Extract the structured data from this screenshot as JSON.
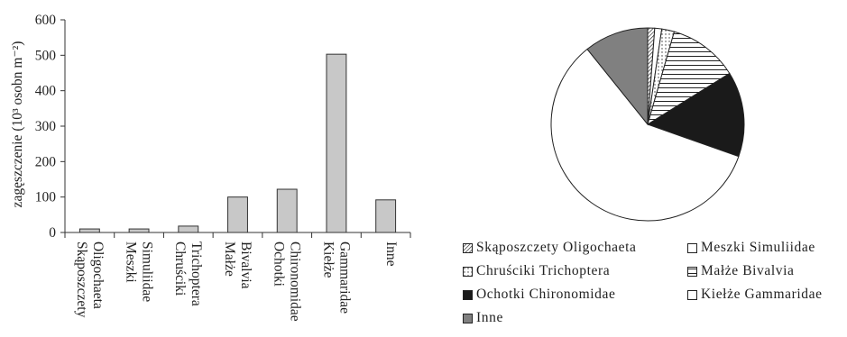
{
  "chart_data": [
    {
      "type": "bar",
      "ylabel": "zagęszczenie (10³ osobn m⁻²)",
      "ylim": [
        0,
        600
      ],
      "yticks": [
        "0",
        "100",
        "200",
        "300",
        "400",
        "500",
        "600"
      ],
      "categories": [
        [
          "Skąposzczety",
          "Oligochaeta"
        ],
        [
          "Meszki",
          "Simuliidae"
        ],
        [
          "Chruściki",
          "Trichoptera"
        ],
        [
          "Małże",
          "Bivalvia"
        ],
        [
          "Ochotki",
          "Chironomidae"
        ],
        [
          "Kiełże",
          "Gammaridae"
        ],
        [
          "Inne"
        ]
      ],
      "values": [
        10,
        10,
        18,
        100,
        122,
        503,
        92
      ],
      "bar_color": "#c8c8c8",
      "grid": false
    },
    {
      "type": "pie",
      "labels": [
        "Skąposzczety Oligochaeta",
        "Meszki Simuliidae",
        "Chruściki Trichoptera",
        "Małże Bivalvia",
        "Ochotki Chironomidae",
        "Kiełże Gammaridae",
        "Inne"
      ],
      "values": [
        10,
        10,
        18,
        100,
        122,
        503,
        92
      ],
      "fills": [
        "diag-hatch",
        "white",
        "dotted",
        "horiz-hatch",
        "#1a1a1a",
        "white",
        "#808080"
      ],
      "legend_position": "bottom"
    }
  ],
  "legend": {
    "items": [
      {
        "label": "Skąposzczety Oligochaeta",
        "fill": "diag-hatch"
      },
      {
        "label": "Meszki Simuliidae",
        "fill": "white"
      },
      {
        "label": "Chruściki Trichoptera",
        "fill": "dotted"
      },
      {
        "label": "Małże Bivalvia",
        "fill": "horiz-hatch"
      },
      {
        "label": "Ochotki  Chironomidae",
        "fill": "#1a1a1a"
      },
      {
        "label": "Kiełże Gammaridae",
        "fill": "white"
      },
      {
        "label": "Inne",
        "fill": "#808080"
      }
    ]
  }
}
